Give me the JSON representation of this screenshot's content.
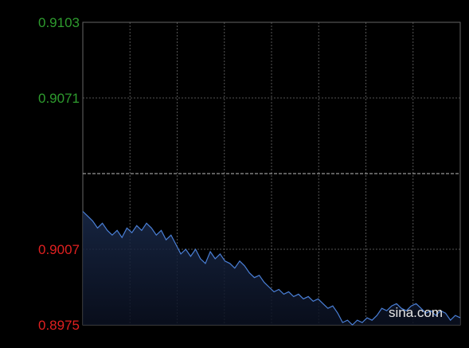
{
  "chart_data": {
    "type": "area",
    "y_ticks": [
      {
        "value": 0.9103,
        "label": "0.9103",
        "color": "#2e9c2e"
      },
      {
        "value": 0.9071,
        "label": "0.9071",
        "color": "#2e9c2e"
      },
      {
        "value": 0.9007,
        "label": "0.9007",
        "color": "#e02020"
      },
      {
        "value": 0.8975,
        "label": "0.8975",
        "color": "#e02020"
      }
    ],
    "reference_value": 0.9039,
    "ylim": [
      0.8975,
      0.9103
    ],
    "x_divisions": 8,
    "grid": true,
    "line_color": "#4a7fd6",
    "watermark": "sina.com",
    "values": [
      0.9023,
      0.9021,
      0.9019,
      0.9016,
      0.9018,
      0.9015,
      0.9013,
      0.9015,
      0.9012,
      0.9016,
      0.9014,
      0.9017,
      0.9015,
      0.9018,
      0.9016,
      0.9013,
      0.9015,
      0.9011,
      0.9013,
      0.9009,
      0.9005,
      0.9007,
      0.9004,
      0.9007,
      0.9003,
      0.9001,
      0.9006,
      0.9003,
      0.9005,
      0.9002,
      0.9001,
      0.8999,
      0.9002,
      0.9,
      0.8997,
      0.8995,
      0.8996,
      0.8993,
      0.8991,
      0.8989,
      0.899,
      0.8988,
      0.8989,
      0.8987,
      0.8988,
      0.8986,
      0.8987,
      0.8985,
      0.8986,
      0.8984,
      0.8982,
      0.8983,
      0.898,
      0.8976,
      0.8977,
      0.8975,
      0.8977,
      0.8976,
      0.8978,
      0.8977,
      0.8979,
      0.8982,
      0.8981,
      0.8983,
      0.8984,
      0.8982,
      0.8981,
      0.8983,
      0.8984,
      0.8982,
      0.898,
      0.8981,
      0.8979,
      0.8981,
      0.898,
      0.8977,
      0.8979,
      0.8978
    ]
  }
}
